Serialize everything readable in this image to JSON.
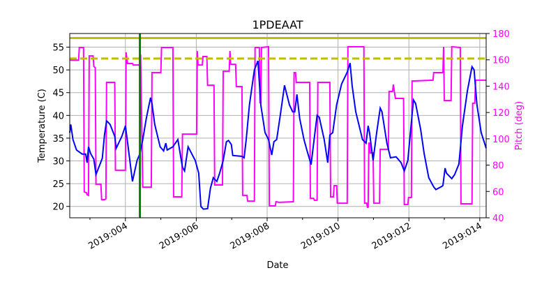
{
  "chart_data": {
    "type": "line",
    "title": "1PDEAAT",
    "xlabel": "Date",
    "ylabel": "Temperature (C)",
    "ylabel_right": "Pitch (deg)",
    "xlim": [
      2.43,
      14.18
    ],
    "ylim": [
      17.5,
      58
    ],
    "ylim_right": [
      40,
      180
    ],
    "x_ticks": [
      4,
      6,
      8,
      10,
      12,
      14
    ],
    "x_tick_labels": [
      "2019:004",
      "2019:006",
      "2019:008",
      "2019:010",
      "2019:012",
      "2019:014"
    ],
    "x_minor_ticks": [
      3,
      5,
      7,
      9,
      11,
      13
    ],
    "y_ticks": [
      20,
      25,
      30,
      35,
      40,
      45,
      50,
      55
    ],
    "y_tick_labels": [
      "20",
      "25",
      "30",
      "35",
      "40",
      "45",
      "50",
      "55"
    ],
    "y_right_ticks": [
      40,
      60,
      80,
      100,
      120,
      140,
      160,
      180
    ],
    "y_right_tick_labels": [
      "40",
      "60",
      "80",
      "100",
      "120",
      "140",
      "160",
      "180"
    ],
    "grid": true,
    "colors": {
      "temperature": "#0000ff",
      "pitch": "#ff00ff",
      "limit": "#bfbf00",
      "marker": "#008000",
      "grid": "#b0b0b0"
    },
    "hlines": [
      {
        "y": 57,
        "style": "solid"
      },
      {
        "y": 52.5,
        "style": "dashed"
      }
    ],
    "vline": {
      "x": 4.41
    },
    "temperature": [
      [
        2.43,
        36.2
      ],
      [
        2.46,
        38.0
      ],
      [
        2.52,
        34.7
      ],
      [
        2.62,
        32.4
      ],
      [
        2.78,
        31.5
      ],
      [
        2.88,
        31.5
      ],
      [
        2.92,
        29.6
      ],
      [
        2.96,
        33.1
      ],
      [
        3.02,
        31.6
      ],
      [
        3.11,
        30.4
      ],
      [
        3.17,
        27.0
      ],
      [
        3.27,
        29.0
      ],
      [
        3.35,
        30.6
      ],
      [
        3.41,
        35.7
      ],
      [
        3.47,
        38.8
      ],
      [
        3.51,
        38.5
      ],
      [
        3.57,
        38.0
      ],
      [
        3.7,
        35.4
      ],
      [
        3.74,
        32.8
      ],
      [
        3.9,
        35.4
      ],
      [
        4.0,
        37.7
      ],
      [
        4.06,
        34.2
      ],
      [
        4.2,
        25.5
      ],
      [
        4.33,
        30.1
      ],
      [
        4.41,
        31.6
      ],
      [
        4.49,
        34.7
      ],
      [
        4.59,
        39.3
      ],
      [
        4.71,
        43.9
      ],
      [
        4.75,
        42.6
      ],
      [
        4.83,
        38.0
      ],
      [
        4.98,
        33.1
      ],
      [
        5.08,
        32.2
      ],
      [
        5.14,
        33.9
      ],
      [
        5.18,
        32.4
      ],
      [
        5.34,
        33.1
      ],
      [
        5.48,
        34.7
      ],
      [
        5.61,
        28.6
      ],
      [
        5.67,
        27.8
      ],
      [
        5.77,
        33.1
      ],
      [
        5.97,
        30.1
      ],
      [
        6.07,
        27.3
      ],
      [
        6.13,
        20.0
      ],
      [
        6.2,
        19.4
      ],
      [
        6.32,
        19.5
      ],
      [
        6.4,
        24.0
      ],
      [
        6.48,
        26.3
      ],
      [
        6.58,
        25.5
      ],
      [
        6.66,
        27.3
      ],
      [
        6.76,
        30.1
      ],
      [
        6.85,
        34.2
      ],
      [
        6.91,
        34.5
      ],
      [
        6.99,
        33.6
      ],
      [
        7.03,
        31.2
      ],
      [
        7.29,
        31.0
      ],
      [
        7.35,
        30.7
      ],
      [
        7.41,
        34.7
      ],
      [
        7.5,
        42.3
      ],
      [
        7.64,
        50.0
      ],
      [
        7.74,
        52.0
      ],
      [
        7.82,
        42.3
      ],
      [
        7.94,
        36.2
      ],
      [
        8.04,
        34.7
      ],
      [
        8.13,
        31.3
      ],
      [
        8.19,
        34.2
      ],
      [
        8.27,
        34.7
      ],
      [
        8.37,
        40.0
      ],
      [
        8.49,
        46.6
      ],
      [
        8.63,
        42.3
      ],
      [
        8.72,
        40.8
      ],
      [
        8.78,
        40.8
      ],
      [
        8.84,
        44.6
      ],
      [
        8.92,
        39.3
      ],
      [
        9.04,
        34.7
      ],
      [
        9.12,
        32.4
      ],
      [
        9.24,
        29.2
      ],
      [
        9.31,
        33.8
      ],
      [
        9.41,
        40.0
      ],
      [
        9.47,
        39.6
      ],
      [
        9.61,
        34.7
      ],
      [
        9.71,
        29.6
      ],
      [
        9.77,
        35.7
      ],
      [
        9.85,
        36.2
      ],
      [
        9.96,
        42.3
      ],
      [
        10.1,
        46.9
      ],
      [
        10.26,
        49.5
      ],
      [
        10.34,
        51.5
      ],
      [
        10.4,
        46.5
      ],
      [
        10.5,
        40.8
      ],
      [
        10.69,
        34.7
      ],
      [
        10.79,
        33.9
      ],
      [
        10.85,
        37.7
      ],
      [
        10.89,
        36.2
      ],
      [
        10.99,
        30.1
      ],
      [
        11.09,
        36.2
      ],
      [
        11.19,
        41.6
      ],
      [
        11.24,
        40.8
      ],
      [
        11.38,
        33.9
      ],
      [
        11.48,
        30.7
      ],
      [
        11.64,
        30.9
      ],
      [
        11.78,
        29.6
      ],
      [
        11.87,
        27.8
      ],
      [
        11.97,
        30.1
      ],
      [
        12.07,
        38.5
      ],
      [
        12.13,
        43.4
      ],
      [
        12.19,
        42.6
      ],
      [
        12.33,
        37.0
      ],
      [
        12.43,
        31.6
      ],
      [
        12.56,
        26.3
      ],
      [
        12.7,
        24.3
      ],
      [
        12.76,
        23.7
      ],
      [
        12.93,
        24.4
      ],
      [
        12.96,
        24.6
      ],
      [
        13.02,
        28.4
      ],
      [
        13.06,
        27.3
      ],
      [
        13.21,
        26.1
      ],
      [
        13.29,
        27.0
      ],
      [
        13.41,
        29.3
      ],
      [
        13.51,
        37.7
      ],
      [
        13.65,
        45.4
      ],
      [
        13.78,
        50.7
      ],
      [
        13.84,
        50.0
      ],
      [
        13.92,
        42.3
      ],
      [
        14.04,
        36.2
      ],
      [
        14.18,
        32.8
      ]
    ],
    "pitch": [
      [
        2.43,
        159.8
      ],
      [
        2.68,
        159.8
      ],
      [
        2.7,
        169.4
      ],
      [
        2.82,
        169.4
      ],
      [
        2.84,
        59.6
      ],
      [
        2.9,
        59.1
      ],
      [
        2.92,
        57.5
      ],
      [
        2.96,
        57.0
      ],
      [
        2.98,
        163.0
      ],
      [
        3.09,
        163.0
      ],
      [
        3.11,
        155.1
      ],
      [
        3.15,
        154.0
      ],
      [
        3.17,
        65.5
      ],
      [
        3.31,
        65.5
      ],
      [
        3.33,
        53.8
      ],
      [
        3.41,
        53.8
      ],
      [
        3.45,
        54.3
      ],
      [
        3.47,
        142.9
      ],
      [
        3.7,
        142.9
      ],
      [
        3.72,
        76.1
      ],
      [
        4.0,
        76.1
      ],
      [
        4.02,
        165.7
      ],
      [
        4.06,
        157.2
      ],
      [
        4.2,
        157.2
      ],
      [
        4.22,
        156.1
      ],
      [
        4.41,
        156.1
      ],
      [
        4.43,
        164.1
      ],
      [
        4.49,
        63.3
      ],
      [
        4.73,
        63.3
      ],
      [
        4.75,
        150.3
      ],
      [
        5.0,
        150.3
      ],
      [
        5.02,
        169.4
      ],
      [
        5.34,
        169.4
      ],
      [
        5.36,
        55.9
      ],
      [
        5.59,
        55.9
      ],
      [
        5.61,
        103.6
      ],
      [
        6.01,
        103.6
      ],
      [
        6.03,
        166.7
      ],
      [
        6.05,
        156.1
      ],
      [
        6.17,
        156.1
      ],
      [
        6.19,
        162.5
      ],
      [
        6.3,
        162.5
      ],
      [
        6.32,
        140.7
      ],
      [
        6.5,
        140.7
      ],
      [
        6.52,
        64.9
      ],
      [
        6.74,
        64.9
      ],
      [
        6.76,
        151.3
      ],
      [
        6.93,
        151.3
      ],
      [
        6.95,
        166.7
      ],
      [
        6.97,
        156.6
      ],
      [
        7.11,
        156.6
      ],
      [
        7.13,
        139.7
      ],
      [
        7.29,
        139.7
      ],
      [
        7.31,
        57.0
      ],
      [
        7.43,
        57.0
      ],
      [
        7.45,
        52.7
      ],
      [
        7.64,
        52.7
      ],
      [
        7.66,
        169.4
      ],
      [
        7.78,
        169.4
      ],
      [
        7.8,
        127.5
      ],
      [
        7.82,
        127.5
      ],
      [
        7.84,
        169.4
      ],
      [
        8.04,
        169.9
      ],
      [
        8.06,
        49.0
      ],
      [
        8.23,
        49.0
      ],
      [
        8.25,
        52.2
      ],
      [
        8.33,
        51.7
      ],
      [
        8.74,
        52.2
      ],
      [
        8.76,
        150.3
      ],
      [
        8.8,
        150.3
      ],
      [
        8.82,
        142.9
      ],
      [
        9.2,
        142.9
      ],
      [
        9.22,
        54.8
      ],
      [
        9.31,
        54.8
      ],
      [
        9.33,
        53.3
      ],
      [
        9.41,
        53.3
      ],
      [
        9.43,
        142.9
      ],
      [
        9.77,
        142.9
      ],
      [
        9.79,
        55.9
      ],
      [
        9.87,
        55.9
      ],
      [
        9.89,
        64.4
      ],
      [
        9.96,
        64.4
      ],
      [
        9.98,
        51.1
      ],
      [
        10.26,
        51.1
      ],
      [
        10.28,
        169.9
      ],
      [
        10.73,
        169.9
      ],
      [
        10.75,
        51.1
      ],
      [
        10.81,
        51.1
      ],
      [
        10.83,
        48.0
      ],
      [
        10.85,
        48.0
      ],
      [
        10.87,
        96.7
      ],
      [
        10.89,
        96.7
      ],
      [
        10.91,
        89.3
      ],
      [
        10.99,
        89.3
      ],
      [
        11.01,
        51.1
      ],
      [
        11.17,
        51.1
      ],
      [
        11.19,
        92.0
      ],
      [
        11.42,
        92.0
      ],
      [
        11.44,
        136.0
      ],
      [
        11.54,
        136.0
      ],
      [
        11.56,
        141.3
      ],
      [
        11.62,
        130.7
      ],
      [
        11.85,
        130.7
      ],
      [
        11.87,
        50.1
      ],
      [
        11.97,
        50.1
      ],
      [
        11.99,
        55.4
      ],
      [
        12.07,
        55.4
      ],
      [
        12.09,
        143.9
      ],
      [
        12.68,
        144.5
      ],
      [
        12.7,
        150.3
      ],
      [
        12.96,
        150.3
      ],
      [
        12.98,
        169.9
      ],
      [
        13.0,
        129.1
      ],
      [
        13.19,
        129.1
      ],
      [
        13.21,
        169.9
      ],
      [
        13.45,
        169.4
      ],
      [
        13.47,
        50.6
      ],
      [
        13.78,
        50.6
      ],
      [
        13.8,
        127.0
      ],
      [
        13.86,
        127.0
      ],
      [
        13.88,
        144.5
      ],
      [
        14.18,
        144.5
      ]
    ]
  }
}
